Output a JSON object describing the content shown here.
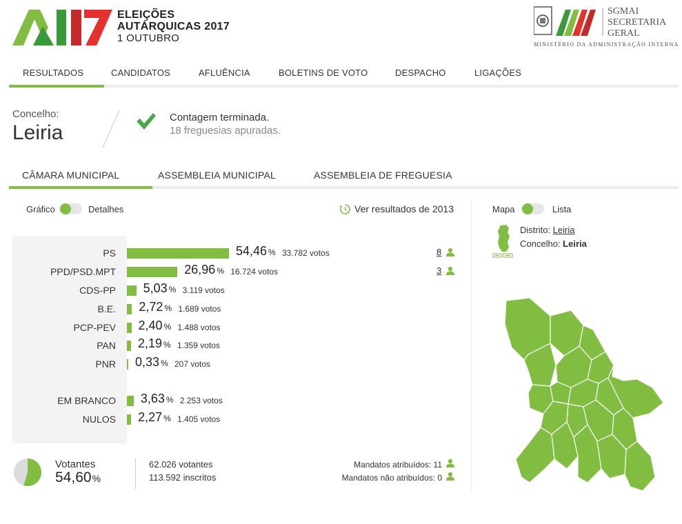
{
  "brand": {
    "logo": "A17",
    "line1": "ELEIÇÕES",
    "line2": "AUTÁRQUICAS 2017",
    "line3": "1 OUTUBRO",
    "ministry_logo_l1": "SGMAI",
    "ministry_logo_l2": "SECRETARIA",
    "ministry_logo_l3": "GERAL",
    "ministry_sub": "MINISTÉRIO DA ADMINISTRAÇÃO INTERNA"
  },
  "main_nav": [
    "RESULTADOS",
    "CANDIDATOS",
    "AFLUÊNCIA",
    "BOLETINS DE VOTO",
    "DESPACHO",
    "LIGAÇÕES"
  ],
  "concelho": {
    "label": "Concelho:",
    "name": "Leiria",
    "status": "Contagem terminada.",
    "status_sub": "18 freguesias apuradas."
  },
  "sub_nav": [
    "CÂMARA MUNICIPAL",
    "ASSEMBLEIA MUNICIPAL",
    "ASSEMBLEIA DE FREGUESIA"
  ],
  "view_toggle": {
    "left": "Gráfico",
    "right": "Detalhes"
  },
  "prev_results_link": "Ver resultados de 2013",
  "pct_sign": "%",
  "results": [
    {
      "party": "PS",
      "pct": "54,46",
      "value": 54.46,
      "votes": "33.782 votos",
      "mandates": "8"
    },
    {
      "party": "PPD/PSD.MPT",
      "pct": "26,96",
      "value": 26.96,
      "votes": "16.724 votos",
      "mandates": "3"
    },
    {
      "party": "CDS-PP",
      "pct": "5,03",
      "value": 5.03,
      "votes": "3.119 votos"
    },
    {
      "party": "B.E.",
      "pct": "2,72",
      "value": 2.72,
      "votes": "1.689 votos"
    },
    {
      "party": "PCP-PEV",
      "pct": "2,40",
      "value": 2.4,
      "votes": "1.488 votos"
    },
    {
      "party": "PAN",
      "pct": "2,19",
      "value": 2.19,
      "votes": "1.359 votos"
    },
    {
      "party": "PNR",
      "pct": "0,33",
      "value": 0.33,
      "votes": "207 votos"
    },
    {
      "party": "EM BRANCO",
      "pct": "3,63",
      "value": 3.63,
      "votes": "2.253 votos"
    },
    {
      "party": "NULOS",
      "pct": "2,27",
      "value": 2.27,
      "votes": "1.405 votos"
    }
  ],
  "turnout": {
    "label": "Votantes",
    "pct": "54,60",
    "value": 54.6,
    "voters": "62.026 votantes",
    "registered": "113.592 inscritos",
    "assigned": "Mandatos atribuídos: 11",
    "unassigned": "Mandatos não atribuídos: 0"
  },
  "map_toggle": {
    "left": "Mapa",
    "right": "Lista"
  },
  "location": {
    "district_label": "Distrito:",
    "district": "Leiria",
    "municipality_label": "Concelho:",
    "municipality": "Leiria"
  },
  "colors": {
    "accent": "#80bd41",
    "map": "#80bd41",
    "red": "#e3312d"
  }
}
